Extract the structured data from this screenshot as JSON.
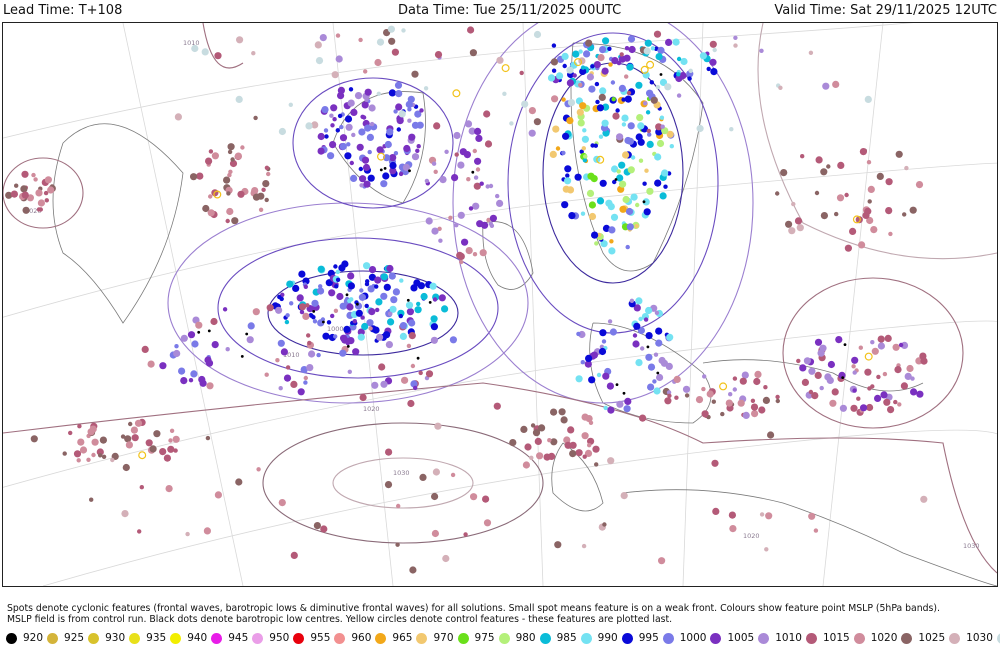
{
  "header": {
    "lead_time": "Lead Time: T+108",
    "data_time": "Data Time: Tue 25/11/2025 00UTC",
    "valid_time": "Valid Time: Sat 29/11/2025 12UTC"
  },
  "caption": {
    "line1": "Spots denote cyclonic features (frontal waves, barotropic lows & diminutive frontal waves) for all solutions. Small spot means feature is on a weak front. Colours show feature point MSLP (5hPa bands).",
    "line2": "MSLP field is from control run. Black dots denote barotropic low centres. Yellow circles denote control features - these features are plotted last."
  },
  "isobar_labels": [
    "1000",
    "1010",
    "1020",
    "1030",
    "1010",
    "1020",
    "1020",
    "1030"
  ],
  "legend": [
    {
      "label": "920",
      "color": "#000000"
    },
    {
      "label": "925",
      "color": "#d4b43a"
    },
    {
      "label": "930",
      "color": "#d8c22c"
    },
    {
      "label": "935",
      "color": "#e8e01a"
    },
    {
      "label": "940",
      "color": "#f2ee00"
    },
    {
      "label": "945",
      "color": "#e81ce8"
    },
    {
      "label": "950",
      "color": "#ea9ee8"
    },
    {
      "label": "955",
      "color": "#e8000c"
    },
    {
      "label": "960",
      "color": "#f29090"
    },
    {
      "label": "965",
      "color": "#f2a81a"
    },
    {
      "label": "970",
      "color": "#f2c870"
    },
    {
      "label": "975",
      "color": "#6ae01a"
    },
    {
      "label": "980",
      "color": "#b4f07a"
    },
    {
      "label": "985",
      "color": "#0abcd8"
    },
    {
      "label": "990",
      "color": "#74e2f2"
    },
    {
      "label": "995",
      "color": "#0a0ad8"
    },
    {
      "label": "1000",
      "color": "#7a7ae8"
    },
    {
      "label": "1005",
      "color": "#7a30c0"
    },
    {
      "label": "1010",
      "color": "#aa8ad8"
    },
    {
      "label": "1015",
      "color": "#b45a78"
    },
    {
      "label": "1020",
      "color": "#d08c9c"
    },
    {
      "label": "1025",
      "color": "#8a6464"
    },
    {
      "label": "1030",
      "color": "#d4b0b8"
    },
    {
      "label": "",
      "color": "#c8dce0"
    }
  ]
}
